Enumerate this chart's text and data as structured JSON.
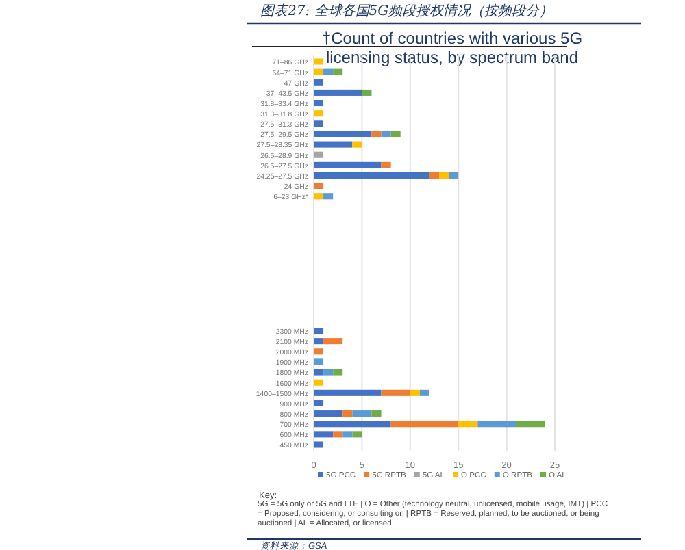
{
  "chart_data": {
    "type": "bar",
    "orientation": "horizontal",
    "stacked": true,
    "subtitle": "图表27: 全球各国5G频段授权情况（按频段分）",
    "title": "†Count of countries with various 5G licensing status, by spectrum band",
    "categories": [
      "71–86 GHz",
      "64–71 GHz",
      "47 GHz",
      "37–43.5 GHz",
      "31.8–33.4 GHz",
      "31.3–31.8 GHz",
      "27.5–31.3 GHz",
      "27.5–29.5 GHz",
      "27.5–28.35 GHz",
      "26.5–28.9 GHz",
      "26.5–27.5 GHz",
      "24.25–27.5 GHz",
      "24 GHz",
      "6–23 GHz*",
      null,
      null,
      null,
      null,
      null,
      null,
      null,
      null,
      null,
      null,
      null,
      null,
      "2300 MHz",
      "2100 MHz",
      "2000 MHz",
      "1900 MHz",
      "1800 MHz",
      "1600 MHz",
      "1400–1500 MHz",
      "900 MHz",
      "800 MHz",
      "700 MHz",
      "600 MHz",
      "450 MHz"
    ],
    "series": [
      {
        "name": "5G PCC",
        "color": "#4472c4",
        "values": [
          0,
          0,
          1,
          5,
          1,
          0,
          1,
          6,
          4,
          0,
          7,
          12,
          0,
          0,
          null,
          null,
          null,
          null,
          null,
          null,
          null,
          null,
          null,
          null,
          null,
          null,
          1,
          1,
          0,
          0,
          1,
          0,
          7,
          1,
          3,
          8,
          2,
          1
        ]
      },
      {
        "name": "5G RPTB",
        "color": "#ed7d31",
        "values": [
          0,
          0,
          0,
          0,
          0,
          0,
          0,
          1,
          0,
          0,
          1,
          1,
          1,
          0,
          null,
          null,
          null,
          null,
          null,
          null,
          null,
          null,
          null,
          null,
          null,
          null,
          0,
          2,
          1,
          0,
          0,
          0,
          3,
          0,
          1,
          7,
          1,
          0
        ]
      },
      {
        "name": "5G AL",
        "color": "#a5a5a5",
        "values": [
          0,
          0,
          0,
          0,
          0,
          0,
          0,
          0,
          0,
          1,
          0,
          0,
          0,
          0,
          null,
          null,
          null,
          null,
          null,
          null,
          null,
          null,
          null,
          null,
          null,
          null,
          0,
          0,
          0,
          0,
          0,
          0,
          0,
          0,
          0,
          0,
          0,
          0
        ]
      },
      {
        "name": "O PCC",
        "color": "#ffc000",
        "values": [
          1,
          1,
          0,
          0,
          0,
          1,
          0,
          0,
          1,
          0,
          0,
          1,
          0,
          1,
          null,
          null,
          null,
          null,
          null,
          null,
          null,
          null,
          null,
          null,
          null,
          null,
          0,
          0,
          0,
          0,
          0,
          1,
          1,
          0,
          0,
          2,
          0,
          0
        ]
      },
      {
        "name": "O RPTB",
        "color": "#5b9bd5",
        "values": [
          0,
          1,
          0,
          0,
          0,
          0,
          0,
          1,
          0,
          0,
          0,
          1,
          0,
          1,
          null,
          null,
          null,
          null,
          null,
          null,
          null,
          null,
          null,
          null,
          null,
          null,
          0,
          0,
          0,
          1,
          1,
          0,
          1,
          0,
          2,
          4,
          1,
          0
        ]
      },
      {
        "name": "O AL",
        "color": "#70ad47",
        "values": [
          0,
          1,
          0,
          1,
          0,
          0,
          0,
          1,
          0,
          0,
          0,
          0,
          0,
          0,
          null,
          null,
          null,
          null,
          null,
          null,
          null,
          null,
          null,
          null,
          null,
          null,
          0,
          0,
          0,
          0,
          1,
          0,
          0,
          0,
          1,
          3,
          1,
          0
        ]
      }
    ],
    "xlim": [
      0,
      25
    ],
    "xticks": [
      0,
      5,
      10,
      15,
      20,
      25
    ],
    "grid": "x",
    "legend": "bottom",
    "annotations": [
      "Key:\n5G = 5G only or 5G and LTE | O = Other (technology neutral, unlicensed, mobile usage, IMT) | PCC = Proposed, considering, or consulting on | RPTB = Reserved, planned, to be auctioned, or being auctioned | AL = Allocated, or licensed",
      "资料来源：GSA"
    ]
  }
}
